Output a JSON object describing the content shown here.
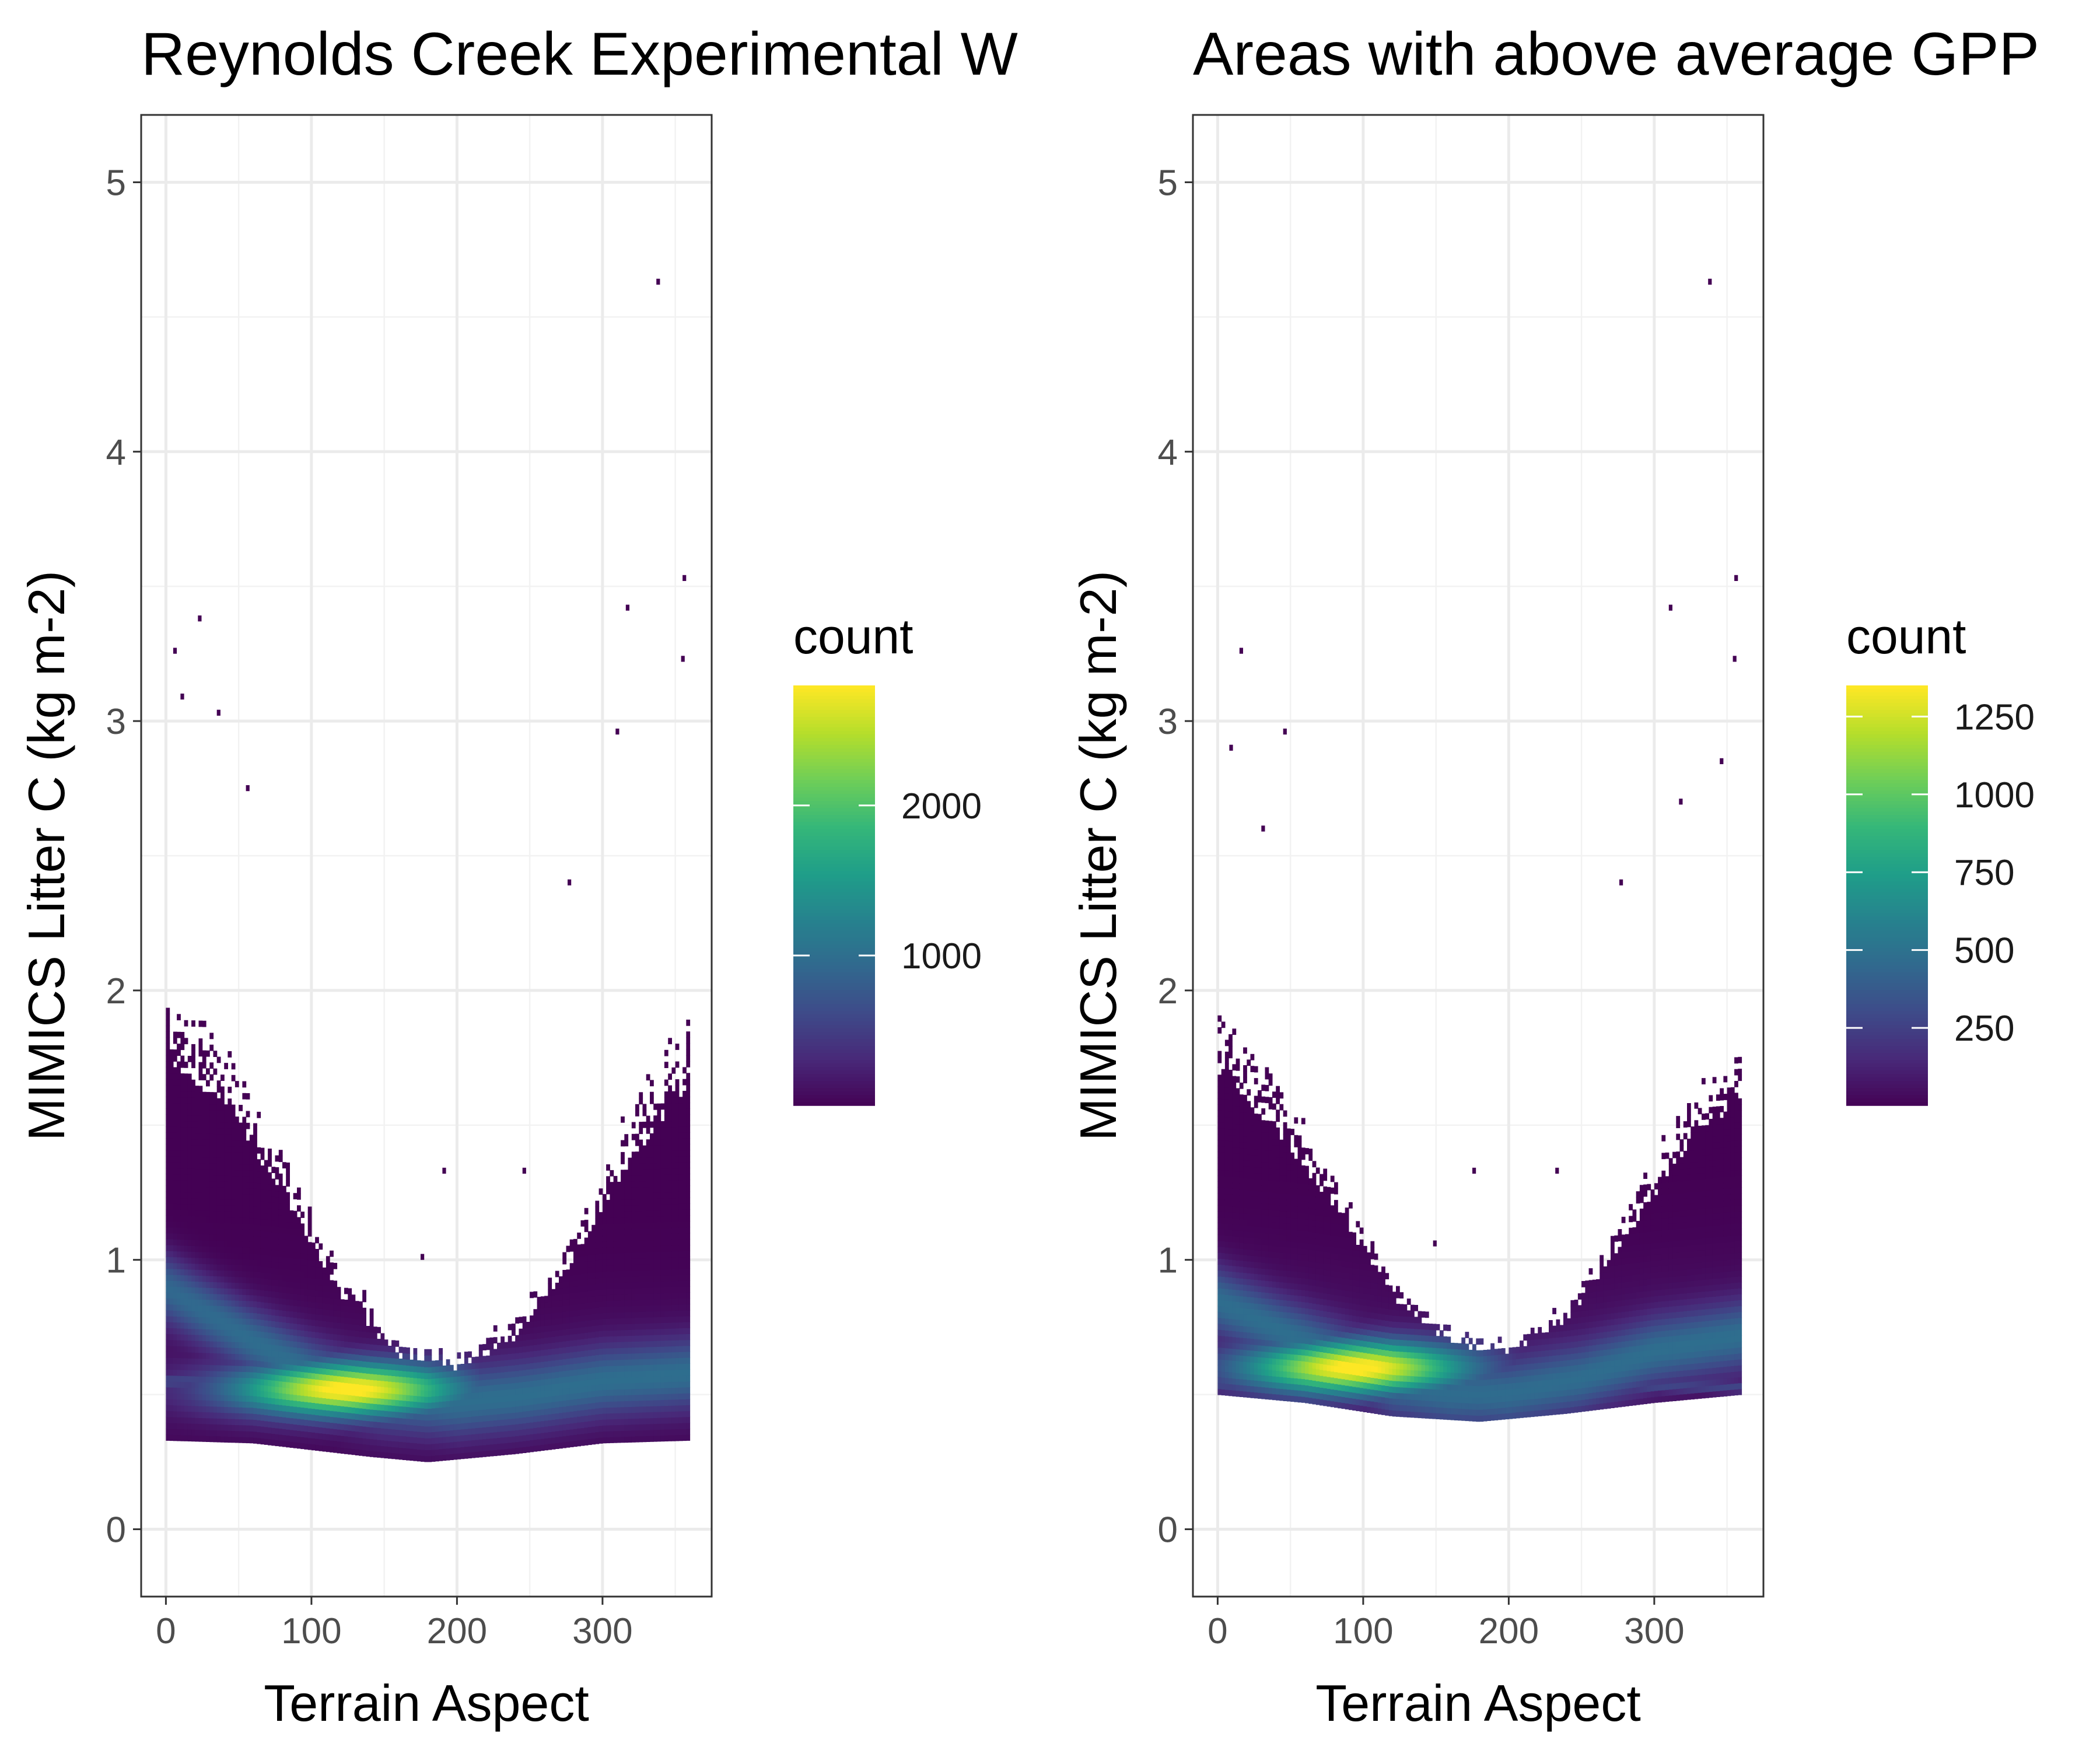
{
  "chart_data": [
    {
      "type": "heatmap",
      "title": "Reynolds Creek Experimental W",
      "xlabel": "Terrain Aspect",
      "ylabel": "MIMICS Litter C (kg m-2)",
      "xlim": [
        -17,
        375
      ],
      "ylim": [
        -0.25,
        5.25
      ],
      "xticks": [
        0,
        100,
        200,
        300
      ],
      "yticks": [
        0,
        1,
        2,
        3,
        4,
        5
      ],
      "grid": true,
      "colormap": "viridis",
      "legend": {
        "title": "count",
        "placement": "right",
        "range": [
          1,
          2800
        ],
        "ticks": [
          1000,
          2000
        ]
      },
      "density": {
        "x_range": [
          0,
          360
        ],
        "lower_boundary": [
          [
            0,
            0.33
          ],
          [
            60,
            0.32
          ],
          [
            140,
            0.27
          ],
          [
            180,
            0.25
          ],
          [
            240,
            0.28
          ],
          [
            300,
            0.32
          ],
          [
            360,
            0.33
          ]
        ],
        "upper_boundary": [
          [
            0,
            2.05
          ],
          [
            40,
            1.85
          ],
          [
            80,
            1.45
          ],
          [
            120,
            1.0
          ],
          [
            160,
            0.72
          ],
          [
            200,
            0.67
          ],
          [
            240,
            0.8
          ],
          [
            280,
            1.15
          ],
          [
            320,
            1.6
          ],
          [
            360,
            1.95
          ]
        ],
        "ridge": [
          [
            0,
            0.9
          ],
          [
            60,
            0.7
          ],
          [
            100,
            0.58
          ],
          [
            125,
            0.52
          ],
          [
            150,
            0.49
          ],
          [
            200,
            0.47
          ],
          [
            250,
            0.5
          ],
          [
            300,
            0.55
          ],
          [
            360,
            0.58
          ]
        ],
        "peak": {
          "x": 125,
          "y": 0.52,
          "count": 2800
        },
        "band_y": 0.55,
        "outliers": [
          [
            5,
            3.25
          ],
          [
            10,
            3.08
          ],
          [
            22,
            3.37
          ],
          [
            35,
            3.02
          ],
          [
            55,
            2.74
          ],
          [
            276,
            2.39
          ],
          [
            309,
            2.95
          ],
          [
            316,
            3.41
          ],
          [
            337,
            4.62
          ],
          [
            355,
            3.52
          ],
          [
            354,
            3.22
          ],
          [
            190,
            1.32
          ],
          [
            175,
            1.0
          ],
          [
            245,
            1.32
          ]
        ]
      }
    },
    {
      "type": "heatmap",
      "title": "Areas with above average GPP",
      "xlabel": "Terrain Aspect",
      "ylabel": "MIMICS Litter C (kg m-2)",
      "xlim": [
        -17,
        375
      ],
      "ylim": [
        -0.25,
        5.25
      ],
      "xticks": [
        0,
        100,
        200,
        300
      ],
      "yticks": [
        0,
        1,
        2,
        3,
        4,
        5
      ],
      "grid": true,
      "colormap": "viridis",
      "legend": {
        "title": "count",
        "placement": "right",
        "range": [
          1,
          1350
        ],
        "ticks": [
          250,
          500,
          750,
          1000,
          1250
        ]
      },
      "density": {
        "x_range": [
          0,
          360
        ],
        "lower_boundary": [
          [
            0,
            0.5
          ],
          [
            60,
            0.47
          ],
          [
            120,
            0.42
          ],
          [
            180,
            0.4
          ],
          [
            240,
            0.43
          ],
          [
            300,
            0.47
          ],
          [
            360,
            0.5
          ]
        ],
        "upper_boundary": [
          [
            0,
            1.95
          ],
          [
            40,
            1.7
          ],
          [
            80,
            1.35
          ],
          [
            120,
            0.95
          ],
          [
            160,
            0.75
          ],
          [
            200,
            0.7
          ],
          [
            240,
            0.85
          ],
          [
            280,
            1.2
          ],
          [
            320,
            1.6
          ],
          [
            360,
            1.85
          ]
        ],
        "ridge": [
          [
            0,
            0.85
          ],
          [
            50,
            0.72
          ],
          [
            90,
            0.62
          ],
          [
            120,
            0.54
          ],
          [
            160,
            0.5
          ],
          [
            200,
            0.5
          ],
          [
            250,
            0.56
          ],
          [
            300,
            0.66
          ],
          [
            360,
            0.72
          ]
        ],
        "peak": {
          "x": 95,
          "y": 0.6,
          "count": 1350
        },
        "band_y": 0.53,
        "outliers": [
          [
            15,
            3.25
          ],
          [
            8,
            2.89
          ],
          [
            45,
            2.95
          ],
          [
            30,
            2.59
          ],
          [
            276,
            2.39
          ],
          [
            310,
            3.41
          ],
          [
            317,
            2.69
          ],
          [
            337,
            4.62
          ],
          [
            355,
            3.52
          ],
          [
            354,
            3.22
          ],
          [
            345,
            2.84
          ],
          [
            175,
            1.32
          ],
          [
            148,
            1.05
          ],
          [
            232,
            1.32
          ]
        ]
      }
    }
  ]
}
